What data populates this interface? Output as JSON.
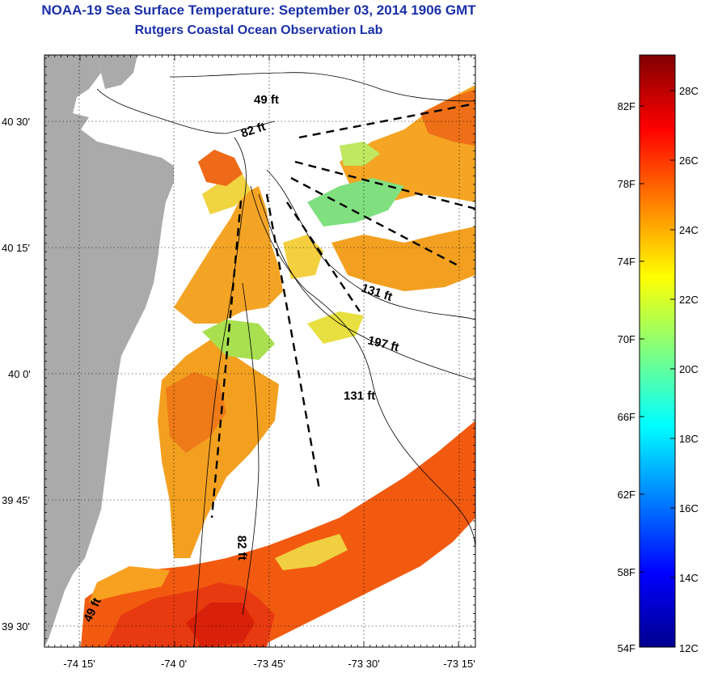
{
  "title": "NOAA-19 Sea Surface Temperature:  September 03, 2014 1906 GMT",
  "subtitle": "Rutgers Coastal Ocean Observation Lab",
  "map": {
    "latitude_labels": [
      "40 30'",
      "40 15'",
      "40 0'",
      "39 45'",
      "39 30'"
    ],
    "longitude_labels": [
      "-74 15'",
      "-74 0'",
      "-73 45'",
      "-73 30'",
      "-73 15'"
    ],
    "isobath_labels": [
      "49 ft",
      "82 ft",
      "131 ft",
      "197 ft",
      "131 ft",
      "82 ft",
      "49 ft"
    ],
    "colors": {
      "land": "#aaaaaa",
      "frame": "#000000",
      "grid": "#000000",
      "no_data": "#ffffff"
    }
  },
  "colorbar": {
    "fahrenheit_labels": [
      "82F",
      "78F",
      "74F",
      "70F",
      "66F",
      "62F",
      "58F",
      "54F"
    ],
    "celsius_labels": [
      "28C",
      "26C",
      "24C",
      "22C",
      "20C",
      "18C",
      "16C",
      "14C",
      "12C"
    ],
    "min_c": 12,
    "max_c": 29.5,
    "gradient": [
      "#00008f",
      "#0000ff",
      "#0080ff",
      "#00ffff",
      "#80ff80",
      "#ffff00",
      "#ff8000",
      "#ff0000",
      "#800000"
    ]
  }
}
